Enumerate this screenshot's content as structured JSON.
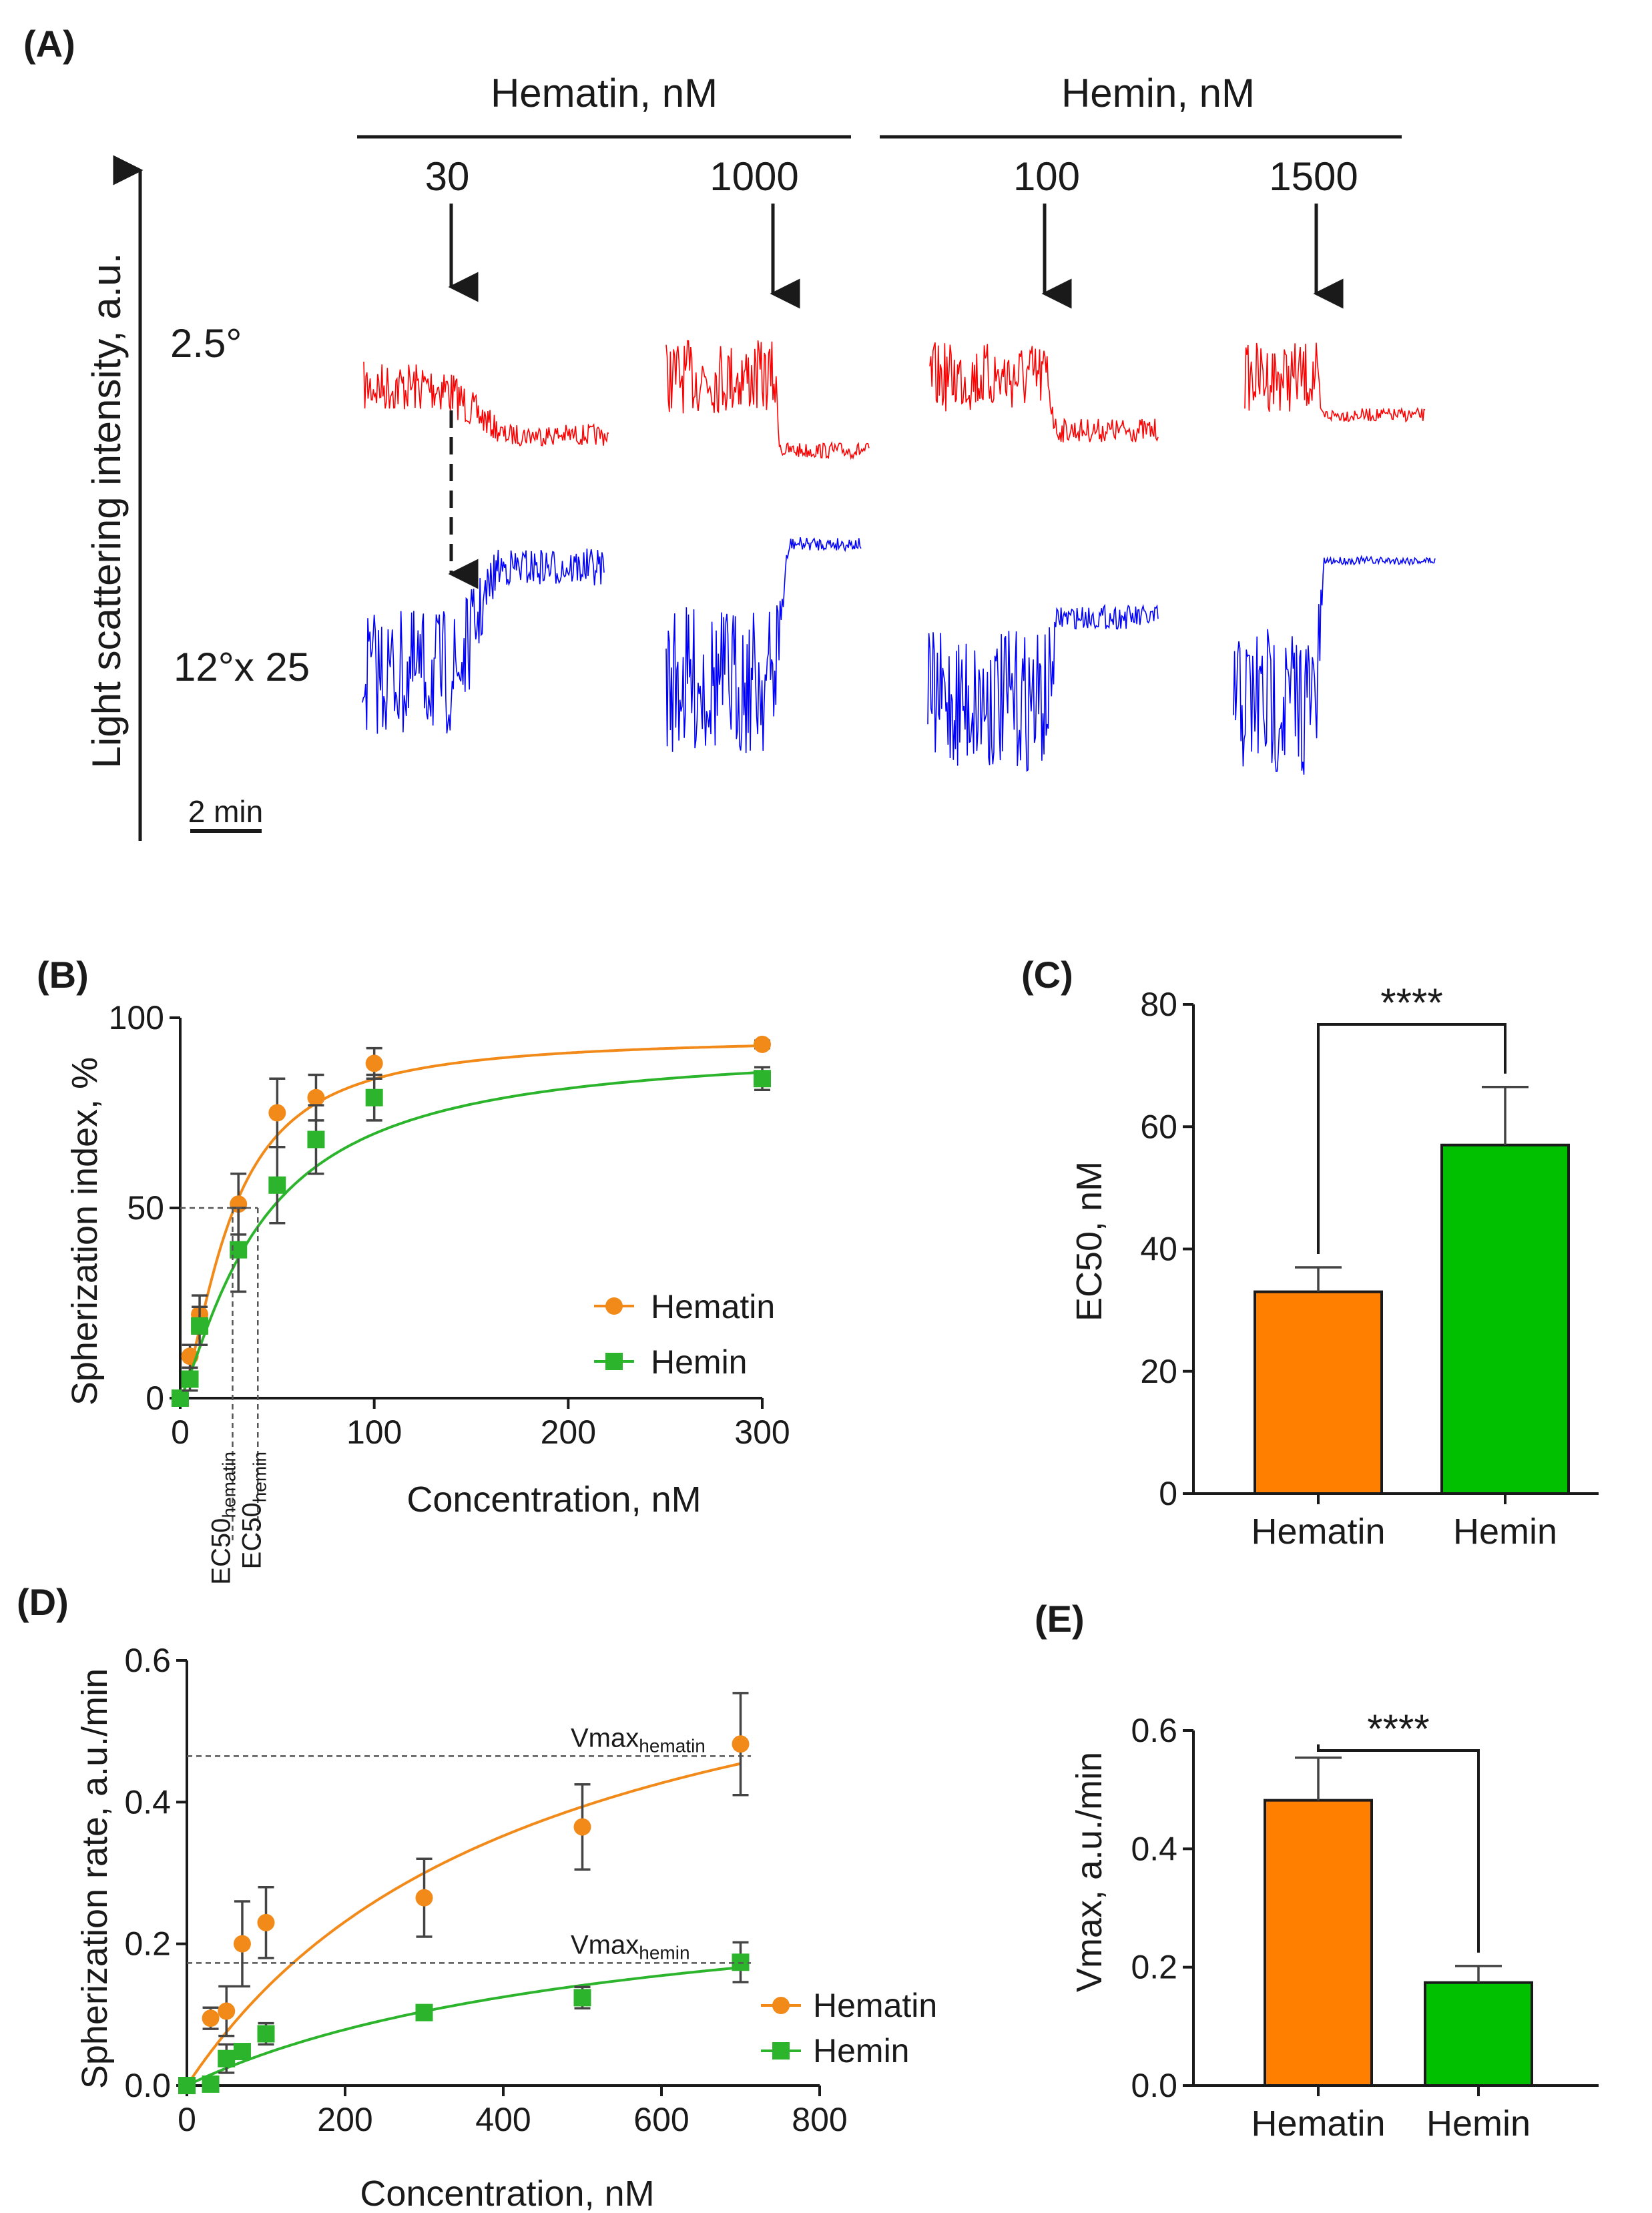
{
  "colors": {
    "hematin": "#f28a1a",
    "hemin": "#2cb52c",
    "hematin_bar": "#ff7f00",
    "hemin_bar": "#00c000",
    "trace_red": "#ff0000",
    "trace_blue": "#0000ff"
  },
  "panelA": {
    "label": "(A)",
    "group_hematin": "Hematin, nM",
    "group_hemin": "Hemin, nM",
    "doses": [
      "30",
      "1000",
      "100",
      "1500"
    ],
    "ylabel": "Light scattering intensity, a.u.",
    "row_top": "2.5°",
    "row_bottom": "12°x 25",
    "scalebar": "2 min"
  },
  "chart_data": [
    {
      "id": "B",
      "type": "scatter",
      "label": "(B)",
      "xlabel": "Concentration, nM",
      "ylabel": "Spherization index, %",
      "xlim": [
        0,
        300
      ],
      "ylim": [
        0,
        100
      ],
      "xticks": [
        "0",
        "100",
        "200",
        "300"
      ],
      "yticks": [
        "0",
        "50",
        "100"
      ],
      "ec50_label_main": "EC50",
      "ec50_sub_hematin": "hematin",
      "ec50_sub_hemin": "hemin",
      "series": [
        {
          "name": "Hematin",
          "marker": "circle",
          "x": [
            0,
            5,
            10,
            30,
            50,
            70,
            100,
            300
          ],
          "y": [
            0,
            11,
            22,
            51,
            75,
            79,
            88,
            93
          ],
          "err": [
            0,
            3,
            5,
            8,
            9,
            6,
            4,
            1
          ]
        },
        {
          "name": "Hemin",
          "marker": "square",
          "x": [
            0,
            5,
            10,
            30,
            50,
            70,
            100,
            300
          ],
          "y": [
            0,
            5,
            19,
            39,
            56,
            68,
            79,
            84
          ],
          "err": [
            0,
            3,
            5,
            11,
            10,
            9,
            6,
            3
          ]
        }
      ],
      "ec50": {
        "hematin": 27,
        "hemin": 40
      }
    },
    {
      "id": "C",
      "type": "bar",
      "label": "(C)",
      "ylabel": "EC50, nM",
      "categories": [
        "Hematin",
        "Hemin"
      ],
      "values": [
        33,
        57
      ],
      "err": [
        4,
        9.5
      ],
      "ylim": [
        0,
        80
      ],
      "yticks": [
        "0",
        "20",
        "40",
        "60",
        "80"
      ],
      "significance": "****"
    },
    {
      "id": "D",
      "type": "scatter",
      "label": "(D)",
      "xlabel": "Concentration, nM",
      "ylabel": "Spherization rate, a.u./min",
      "xlim": [
        0,
        800
      ],
      "ylim": [
        0,
        0.6
      ],
      "xticks": [
        "0",
        "200",
        "400",
        "600",
        "800"
      ],
      "yticks": [
        "0.0",
        "0.2",
        "0.4",
        "0.6"
      ],
      "vmax_label_main": "Vmax",
      "vmax_sub_hematin": "hematin",
      "vmax_sub_hemin": "hemin",
      "series": [
        {
          "name": "Hematin",
          "marker": "circle",
          "x": [
            0,
            30,
            50,
            70,
            100,
            300,
            500,
            700
          ],
          "y": [
            0,
            0.095,
            0.105,
            0.2,
            0.23,
            0.265,
            0.365,
            0.482
          ],
          "err": [
            0,
            0.015,
            0.035,
            0.06,
            0.05,
            0.055,
            0.06,
            0.072
          ]
        },
        {
          "name": "Hemin",
          "marker": "square",
          "x": [
            0,
            30,
            50,
            70,
            100,
            300,
            500,
            700
          ],
          "y": [
            0,
            0.002,
            0.038,
            0.048,
            0.073,
            0.103,
            0.124,
            0.174
          ],
          "err": [
            0,
            0.003,
            0.02,
            0.01,
            0.015,
            0.01,
            0.015,
            0.028
          ]
        }
      ],
      "vmax": {
        "hematin": 0.465,
        "hemin": 0.173
      }
    },
    {
      "id": "E",
      "type": "bar",
      "label": "(E)",
      "ylabel": "Vmax, a.u./min",
      "categories": [
        "Hematin",
        "Hemin"
      ],
      "values": [
        0.482,
        0.174
      ],
      "err": [
        0.072,
        0.028
      ],
      "ylim": [
        0,
        0.6
      ],
      "yticks": [
        "0.0",
        "0.2",
        "0.4",
        "0.6"
      ],
      "significance": "****"
    }
  ]
}
